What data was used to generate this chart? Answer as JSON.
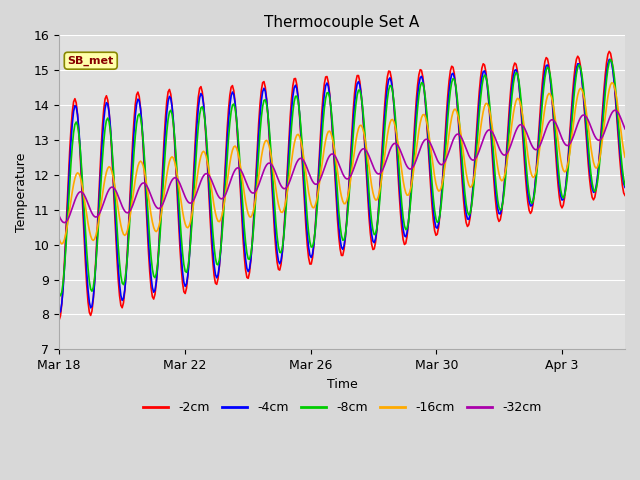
{
  "title": "Thermocouple Set A",
  "xlabel": "Time",
  "ylabel": "Temperature",
  "ylim": [
    7.0,
    16.0
  ],
  "yticks": [
    7.0,
    8.0,
    9.0,
    10.0,
    11.0,
    12.0,
    13.0,
    14.0,
    15.0,
    16.0
  ],
  "lines": [
    {
      "label": "-2cm",
      "color": "#ff0000",
      "lw": 1.2
    },
    {
      "label": "-4cm",
      "color": "#0000ff",
      "lw": 1.2
    },
    {
      "label": "-8cm",
      "color": "#00cc00",
      "lw": 1.2
    },
    {
      "label": "-16cm",
      "color": "#ffaa00",
      "lw": 1.2
    },
    {
      "label": "-32cm",
      "color": "#aa00aa",
      "lw": 1.2
    }
  ],
  "x_tick_labels": [
    "Mar 18",
    "Mar 22",
    "Mar 26",
    "Mar 30",
    "Apr 3"
  ],
  "x_tick_positions": [
    0,
    4,
    8,
    12,
    16
  ],
  "total_days": 18,
  "trend_start": 11.0,
  "trend_end": 13.5,
  "amp_shallow_start": 3.2,
  "amp_shallow_end": 2.0,
  "amp_mid_start": 3.0,
  "amp_mid_end": 1.8,
  "amp_8_start": 2.5,
  "amp_8_end": 1.8,
  "amp_16_start": 1.0,
  "amp_16_end": 1.2,
  "amp_32_start": 0.4,
  "amp_32_end": 0.4
}
